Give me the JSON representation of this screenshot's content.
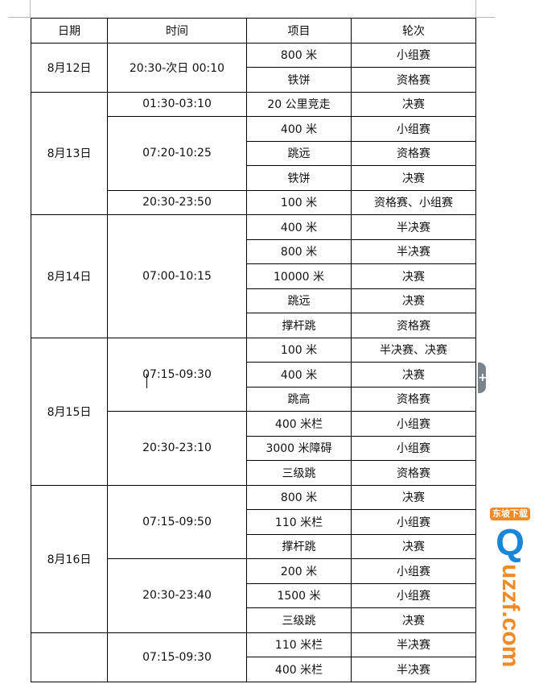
{
  "header": {
    "date": "日期",
    "time": "时间",
    "item": "项目",
    "round": "轮次"
  },
  "schedule": [
    {
      "date": "8月12日",
      "slots": [
        {
          "time": "20:30-次日 00:10",
          "events": [
            {
              "item": "800 米",
              "round": "小组赛"
            },
            {
              "item": "铁饼",
              "round": "资格赛"
            }
          ]
        }
      ]
    },
    {
      "date": "8月13日",
      "slots": [
        {
          "time": "01:30-03:10",
          "events": [
            {
              "item": "20 公里竞走",
              "round": "决赛"
            }
          ]
        },
        {
          "time": "07:20-10:25",
          "events": [
            {
              "item": "400 米",
              "round": "小组赛"
            },
            {
              "item": "跳远",
              "round": "资格赛"
            },
            {
              "item": "铁饼",
              "round": "决赛"
            }
          ]
        },
        {
          "time": "20:30-23:50",
          "events": [
            {
              "item": "100 米",
              "round": "资格赛、小组赛"
            }
          ]
        }
      ]
    },
    {
      "date": "8月14日",
      "slots": [
        {
          "time": "07:00-10:15",
          "events": [
            {
              "item": "400 米",
              "round": "半决赛"
            },
            {
              "item": "800 米",
              "round": "半决赛"
            },
            {
              "item": "10000 米",
              "round": "决赛"
            },
            {
              "item": "跳远",
              "round": "决赛"
            },
            {
              "item": "撑杆跳",
              "round": "资格赛"
            }
          ]
        }
      ]
    },
    {
      "date": "8月15日",
      "slots": [
        {
          "time": "07:15-09:30",
          "events": [
            {
              "item": "100 米",
              "round": "半决赛、决赛"
            },
            {
              "item": "400 米",
              "round": "决赛"
            },
            {
              "item": "跳高",
              "round": "资格赛"
            }
          ]
        },
        {
          "time": "20:30-23:10",
          "events": [
            {
              "item": "400 米栏",
              "round": "小组赛"
            },
            {
              "item": "3000 米障碍",
              "round": "小组赛"
            },
            {
              "item": "三级跳",
              "round": "资格赛"
            }
          ]
        }
      ]
    },
    {
      "date": "8月16日",
      "slots": [
        {
          "time": "07:15-09:50",
          "events": [
            {
              "item": "800 米",
              "round": "决赛"
            },
            {
              "item": "110 米栏",
              "round": "小组赛"
            },
            {
              "item": "撑杆跳",
              "round": "决赛"
            }
          ]
        },
        {
          "time": "20:30-23:40",
          "events": [
            {
              "item": "200 米",
              "round": "小组赛"
            },
            {
              "item": "1500 米",
              "round": "小组赛"
            },
            {
              "item": "三级跳",
              "round": "决赛"
            }
          ]
        }
      ]
    },
    {
      "date": "",
      "slots": [
        {
          "time": "07:15-09:30",
          "events": [
            {
              "item": "110 米栏",
              "round": "半决赛"
            },
            {
              "item": "400 米栏",
              "round": "半决赛"
            }
          ]
        }
      ]
    }
  ],
  "side_tab": {
    "icon": "plus-icon",
    "label": "+"
  },
  "watermark": {
    "text": "uzzf.com",
    "tag": "东坡下载",
    "letter": "Q"
  }
}
